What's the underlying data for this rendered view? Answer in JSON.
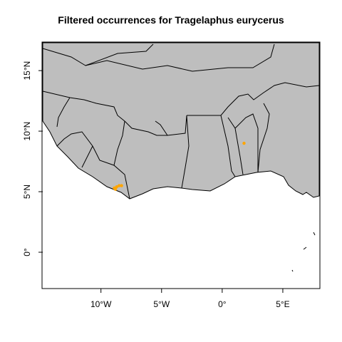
{
  "title": "Filtered occurrences for Tragelaphus eurycerus",
  "colors": {
    "land": "#bebebe",
    "sea": "#ffffff",
    "border": "#000000",
    "occurrence": "#ffa500"
  },
  "axes": {
    "x_ticks": [
      {
        "value": -10,
        "label": "10°W"
      },
      {
        "value": -5,
        "label": "5°W"
      },
      {
        "value": 0,
        "label": "0°"
      },
      {
        "value": 5,
        "label": "5°E"
      }
    ],
    "y_ticks": [
      {
        "value": 0,
        "label": "0°"
      },
      {
        "value": 5,
        "label": "5°N"
      },
      {
        "value": 10,
        "label": "10°N"
      },
      {
        "value": 15,
        "label": "15°N"
      }
    ],
    "lon_range": [
      -14.8,
      8.0
    ],
    "lat_range": [
      -3.0,
      17.3
    ]
  },
  "occurrences": [
    {
      "lon": -8.9,
      "lat": 5.3
    },
    {
      "lon": -8.7,
      "lat": 5.4
    },
    {
      "lon": -8.5,
      "lat": 5.5
    },
    {
      "lon": -8.8,
      "lat": 5.2
    },
    {
      "lon": -8.3,
      "lat": 5.5
    },
    {
      "lon": 1.8,
      "lat": 9.0
    }
  ]
}
